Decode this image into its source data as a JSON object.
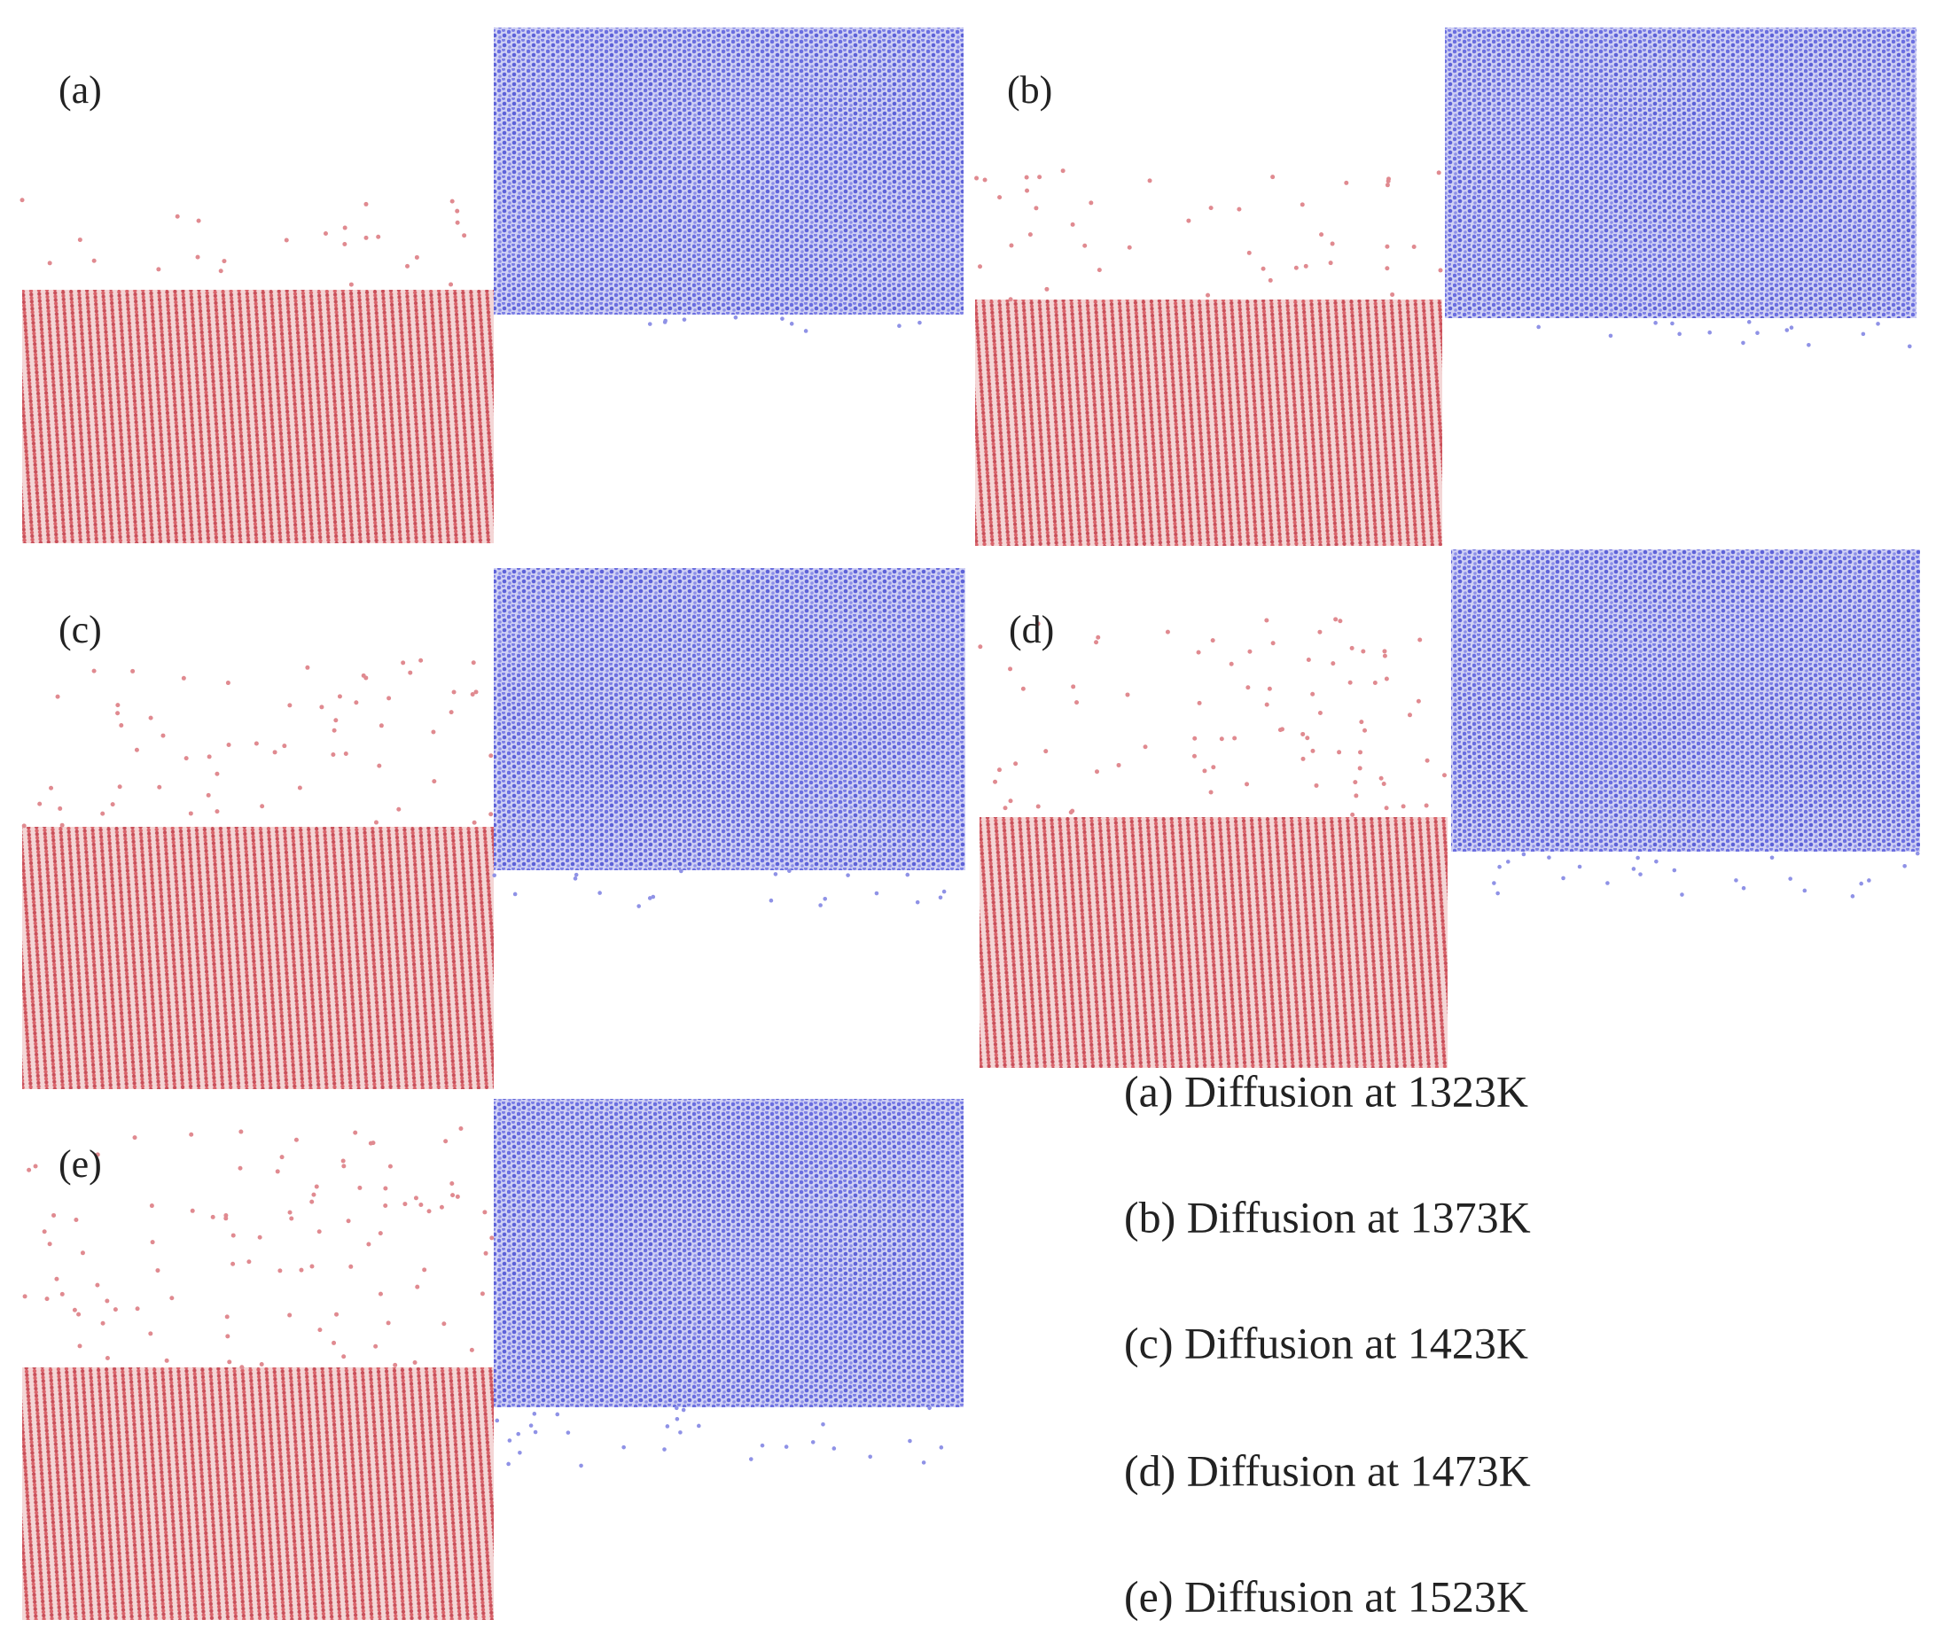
{
  "panels": [
    {
      "label": "(a)"
    },
    {
      "label": "(b)"
    },
    {
      "label": "(c)"
    },
    {
      "label": "(d)"
    },
    {
      "label": "(e)"
    }
  ],
  "captions": [
    "(a) Diffusion at 1323K",
    "(b) Diffusion at 1373K",
    "(c) Diffusion at 1423K",
    "(d) Diffusion at 1473K",
    "(e) Diffusion at 1523K"
  ]
}
